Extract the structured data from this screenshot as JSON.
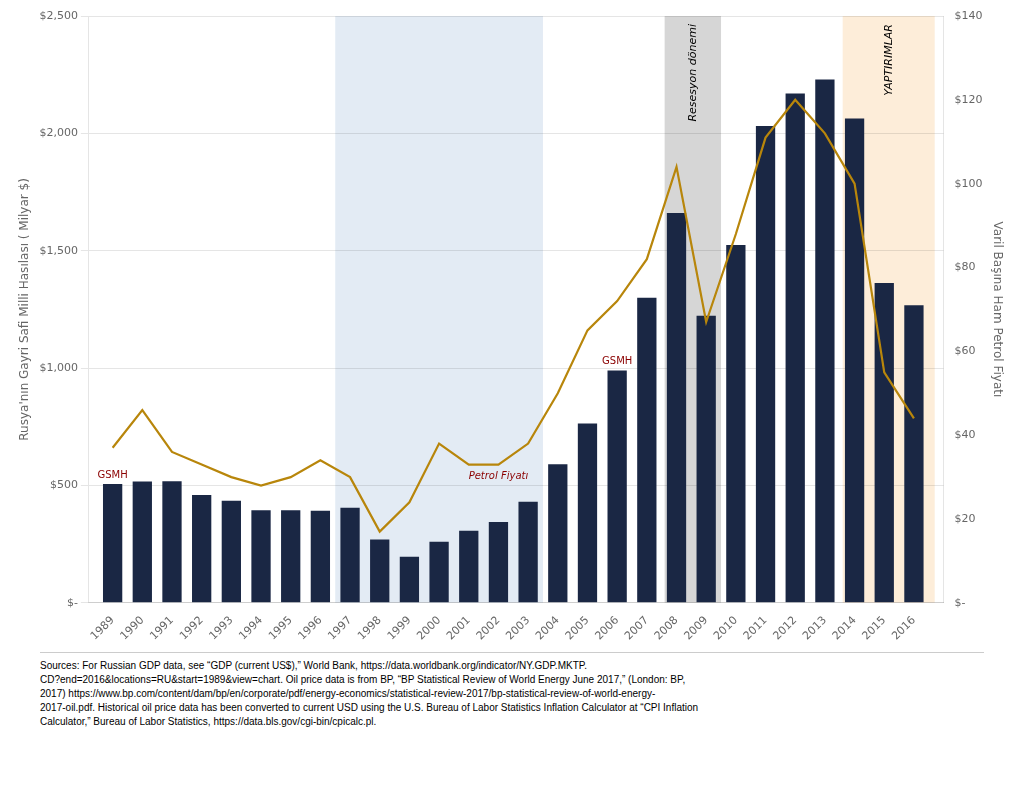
{
  "chart_data": {
    "type": "bar",
    "x": [
      1989,
      1990,
      1991,
      1992,
      1993,
      1994,
      1995,
      1996,
      1997,
      1998,
      1999,
      2000,
      2001,
      2002,
      2003,
      2004,
      2005,
      2006,
      2007,
      2008,
      2009,
      2010,
      2011,
      2012,
      2013,
      2014,
      2015,
      2016
    ],
    "xlim": [
      1988.2,
      2017.0
    ],
    "xticks": [
      1989,
      1990,
      1991,
      1992,
      1993,
      1994,
      1995,
      1996,
      1997,
      1998,
      1999,
      2000,
      2001,
      2002,
      2003,
      2004,
      2005,
      2006,
      2007,
      2008,
      2009,
      2010,
      2011,
      2012,
      2013,
      2014,
      2015,
      2016
    ],
    "ylabel": "Rusya'nın Gayri Safi Milli Hasılası ( Milyar $)",
    "y2label": "Varil Başına Ham Petrol Fiyatı",
    "ylim": [
      0,
      2500
    ],
    "yticks": [
      {
        "value": 0,
        "label": "$-"
      },
      {
        "value": 500,
        "label": "$500"
      },
      {
        "value": 1000,
        "label": "$1,000"
      },
      {
        "value": 1500,
        "label": "$1,500"
      },
      {
        "value": 2000,
        "label": "$2,000"
      },
      {
        "value": 2500,
        "label": "$2,500"
      }
    ],
    "y2lim": [
      0,
      140
    ],
    "y2ticks": [
      {
        "value": 0,
        "label": "$-"
      },
      {
        "value": 20,
        "label": "$20"
      },
      {
        "value": 40,
        "label": "$40"
      },
      {
        "value": 60,
        "label": "$60"
      },
      {
        "value": 80,
        "label": "$80"
      },
      {
        "value": 100,
        "label": "$100"
      },
      {
        "value": 120,
        "label": "$120"
      },
      {
        "value": 140,
        "label": "$140"
      }
    ],
    "grid": "y",
    "series": [
      {
        "type": "bar",
        "color": "#1a2744",
        "values": [
          506,
          517,
          518,
          460,
          435,
          395,
          395,
          392,
          405,
          270,
          196,
          260,
          307,
          345,
          431,
          591,
          764,
          990,
          1300,
          1661,
          1223,
          1525,
          2031,
          2170,
          2230,
          2063,
          1363,
          1268
        ],
        "annotations": [
          {
            "text": "GSMH",
            "x": 1989
          },
          {
            "text": "GSMH",
            "x": 2006
          }
        ]
      },
      {
        "type": "line",
        "axis": "y2",
        "color": "#b8860b",
        "values": [
          37,
          46,
          36,
          33,
          30,
          28,
          30,
          34,
          30,
          17,
          24,
          38,
          33,
          33,
          38,
          50,
          65,
          72,
          82,
          104,
          67,
          88,
          111,
          120,
          112,
          100,
          55,
          44
        ],
        "annotations": [
          {
            "text": "Petrol Fiyatı",
            "x": 2002
          }
        ]
      }
    ],
    "regions": [
      {
        "start": 1996.5,
        "end": 2003.5,
        "color": "#dce6f1"
      },
      {
        "start": 2007.6,
        "end": 2009.5,
        "color": "#cccccc",
        "label": "Resesyon dönemi"
      },
      {
        "start": 2013.6,
        "end": 2016.7,
        "color": "#fde8d0",
        "label": "YAPTIRIMLAR"
      }
    ],
    "source": "Sources: For Russian GDP data, see “GDP (current US$),” World Bank, https://data.worldbank.org/indicator/NY.GDP.MKTP.\nCD?end=2016&locations=RU&start=1989&view=chart. Oil price data is from BP, “BP Statistical Review of World Energy June 2017,” (London: BP,\n2017) https://www.bp.com/content/dam/bp/en/corporate/pdf/energy-economics/statistical-review-2017/bp-statistical-review-of-world-energy-\n2017-oil.pdf. Historical oil price data has been converted to current USD using the U.S. Bureau of Labor Statistics Inflation Calculator at “CPI Inflation\nCalculator,” Bureau of Labor Statistics, https://data.bls.gov/cgi-bin/cpicalc.pl."
  }
}
